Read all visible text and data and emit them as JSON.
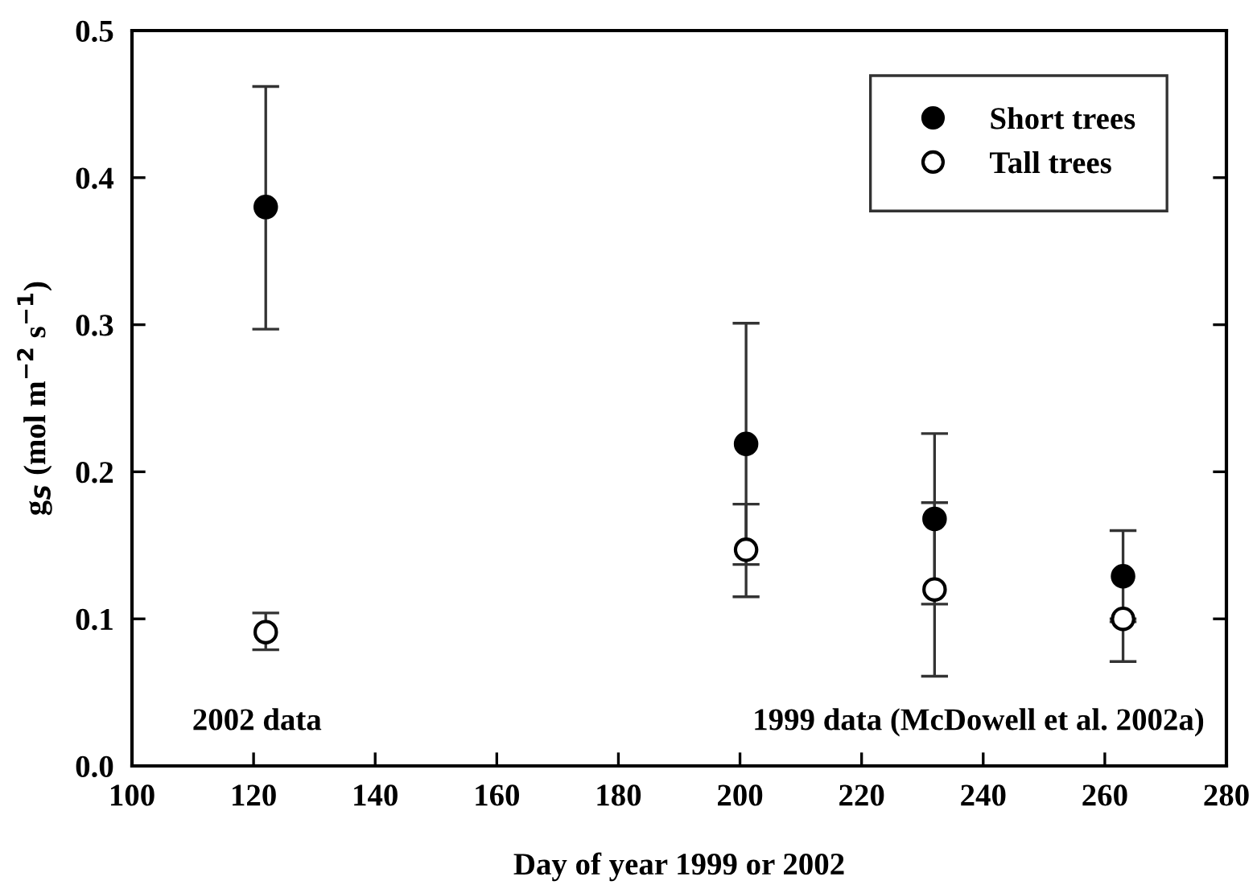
{
  "chart_data": {
    "type": "scatter",
    "xlabel": "Day of year 1999 or 2002",
    "ylabel": "g$_{S}$ (mol m$^{−2}$ s$^{−1}$)",
    "x": [
      122,
      201,
      232,
      263
    ],
    "series": [
      {
        "name": "Short trees",
        "color": "#000000",
        "marker": "circle",
        "values": [
          0.38,
          0.219,
          0.168,
          0.129
        ],
        "errors": [
          [
            0.297,
            0.462
          ],
          [
            0.137,
            0.301
          ],
          [
            0.11,
            0.226
          ],
          [
            0.098,
            0.16
          ]
        ]
      },
      {
        "name": "Tall trees",
        "color": "#ffffff",
        "marker": "circle",
        "values": [
          0.091,
          0.147,
          0.12,
          0.1
        ],
        "errors": [
          [
            0.079,
            0.104
          ],
          [
            0.115,
            0.178
          ],
          [
            0.061,
            0.179
          ],
          [
            0.071,
            0.1
          ]
        ]
      }
    ],
    "xlim": [
      100,
      280
    ],
    "xticks": [
      100,
      120,
      140,
      160,
      180,
      200,
      220,
      240,
      260,
      280
    ],
    "ylim": [
      0,
      0.5
    ],
    "yticks": [
      {
        "value": 0,
        "label": "0.0"
      },
      0.1,
      0.2,
      0.3,
      0.4,
      0.5
    ],
    "legend": "top right",
    "grid": false,
    "annotations": [
      "2002 data",
      "1999 data (McDowell et al. 2002a)"
    ]
  }
}
